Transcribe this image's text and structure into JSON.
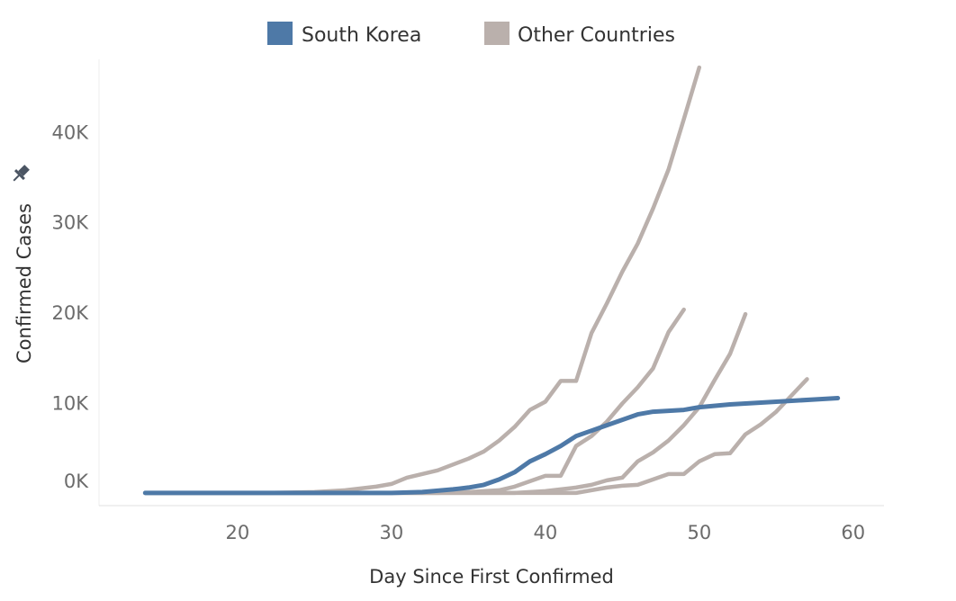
{
  "chart_data": {
    "type": "line",
    "title": "",
    "xlabel": "Day Since First Confirmed",
    "ylabel": "Confirmed Cases",
    "xlim": [
      11,
      62
    ],
    "ylim": [
      -1400,
      48000
    ],
    "x_ticks": [
      20,
      30,
      40,
      50,
      60
    ],
    "y_ticks": [
      0,
      10000,
      20000,
      30000,
      40000
    ],
    "x_tick_labels": [
      "20",
      "30",
      "40",
      "50",
      "60"
    ],
    "y_tick_labels": [
      "0K",
      "10K",
      "20K",
      "30K",
      "40K"
    ],
    "grid": false,
    "legend": {
      "position": "top-center",
      "entries": [
        {
          "label": "South Korea",
          "color": "#4e79a7"
        },
        {
          "label": "Other Countries",
          "color": "#bab0ac"
        }
      ]
    },
    "series": [
      {
        "name": "Other Countries",
        "color": "#bab0ac",
        "points": [
          [
            14,
            0
          ],
          [
            22,
            0
          ],
          [
            25,
            100
          ],
          [
            27,
            300
          ],
          [
            29,
            700
          ],
          [
            30,
            1000
          ],
          [
            31,
            1700
          ],
          [
            33,
            2500
          ],
          [
            35,
            3800
          ],
          [
            36,
            4600
          ],
          [
            37,
            5800
          ],
          [
            38,
            7300
          ],
          [
            39,
            9200
          ],
          [
            40,
            10100
          ],
          [
            41,
            12400
          ],
          [
            42,
            12400
          ],
          [
            43,
            17700
          ],
          [
            44,
            21000
          ],
          [
            45,
            24500
          ],
          [
            46,
            27600
          ],
          [
            47,
            31500
          ],
          [
            48,
            35800
          ],
          [
            49,
            41400
          ],
          [
            50,
            47100
          ]
        ]
      },
      {
        "name": "Other Countries",
        "color": "#bab0ac",
        "points": [
          [
            14,
            0
          ],
          [
            33,
            0
          ],
          [
            35,
            100
          ],
          [
            37,
            300
          ],
          [
            38,
            700
          ],
          [
            39,
            1300
          ],
          [
            40,
            1900
          ],
          [
            41,
            1900
          ],
          [
            42,
            5200
          ],
          [
            43,
            6300
          ],
          [
            44,
            7900
          ],
          [
            45,
            9900
          ],
          [
            46,
            11700
          ],
          [
            47,
            13800
          ],
          [
            48,
            17800
          ],
          [
            49,
            20300
          ]
        ]
      },
      {
        "name": "Other Countries",
        "color": "#bab0ac",
        "points": [
          [
            14,
            0
          ],
          [
            38,
            0
          ],
          [
            40,
            200
          ],
          [
            41,
            400
          ],
          [
            42,
            600
          ],
          [
            43,
            900
          ],
          [
            44,
            1400
          ],
          [
            45,
            1700
          ],
          [
            46,
            3500
          ],
          [
            47,
            4500
          ],
          [
            48,
            5800
          ],
          [
            49,
            7500
          ],
          [
            50,
            9500
          ],
          [
            51,
            12500
          ],
          [
            52,
            15400
          ],
          [
            53,
            19800
          ]
        ]
      },
      {
        "name": "Other Countries",
        "color": "#bab0ac",
        "points": [
          [
            14,
            0
          ],
          [
            42,
            0
          ],
          [
            43,
            300
          ],
          [
            44,
            600
          ],
          [
            45,
            800
          ],
          [
            46,
            900
          ],
          [
            47,
            1500
          ],
          [
            48,
            2100
          ],
          [
            49,
            2100
          ],
          [
            50,
            3500
          ],
          [
            51,
            4300
          ],
          [
            52,
            4400
          ],
          [
            53,
            6500
          ],
          [
            54,
            7600
          ],
          [
            55,
            9000
          ],
          [
            56,
            10800
          ],
          [
            57,
            12600
          ]
        ]
      },
      {
        "name": "South Korea",
        "color": "#4e79a7",
        "points": [
          [
            14,
            0
          ],
          [
            30,
            0
          ],
          [
            32,
            100
          ],
          [
            34,
            400
          ],
          [
            35,
            600
          ],
          [
            36,
            900
          ],
          [
            37,
            1500
          ],
          [
            38,
            2300
          ],
          [
            39,
            3500
          ],
          [
            40,
            4300
          ],
          [
            41,
            5200
          ],
          [
            42,
            6300
          ],
          [
            43,
            6900
          ],
          [
            44,
            7500
          ],
          [
            45,
            8100
          ],
          [
            46,
            8700
          ],
          [
            47,
            9000
          ],
          [
            48,
            9100
          ],
          [
            49,
            9200
          ],
          [
            50,
            9500
          ],
          [
            52,
            9800
          ],
          [
            54,
            10000
          ],
          [
            56,
            10200
          ],
          [
            58,
            10400
          ],
          [
            59,
            10500
          ]
        ]
      }
    ]
  }
}
